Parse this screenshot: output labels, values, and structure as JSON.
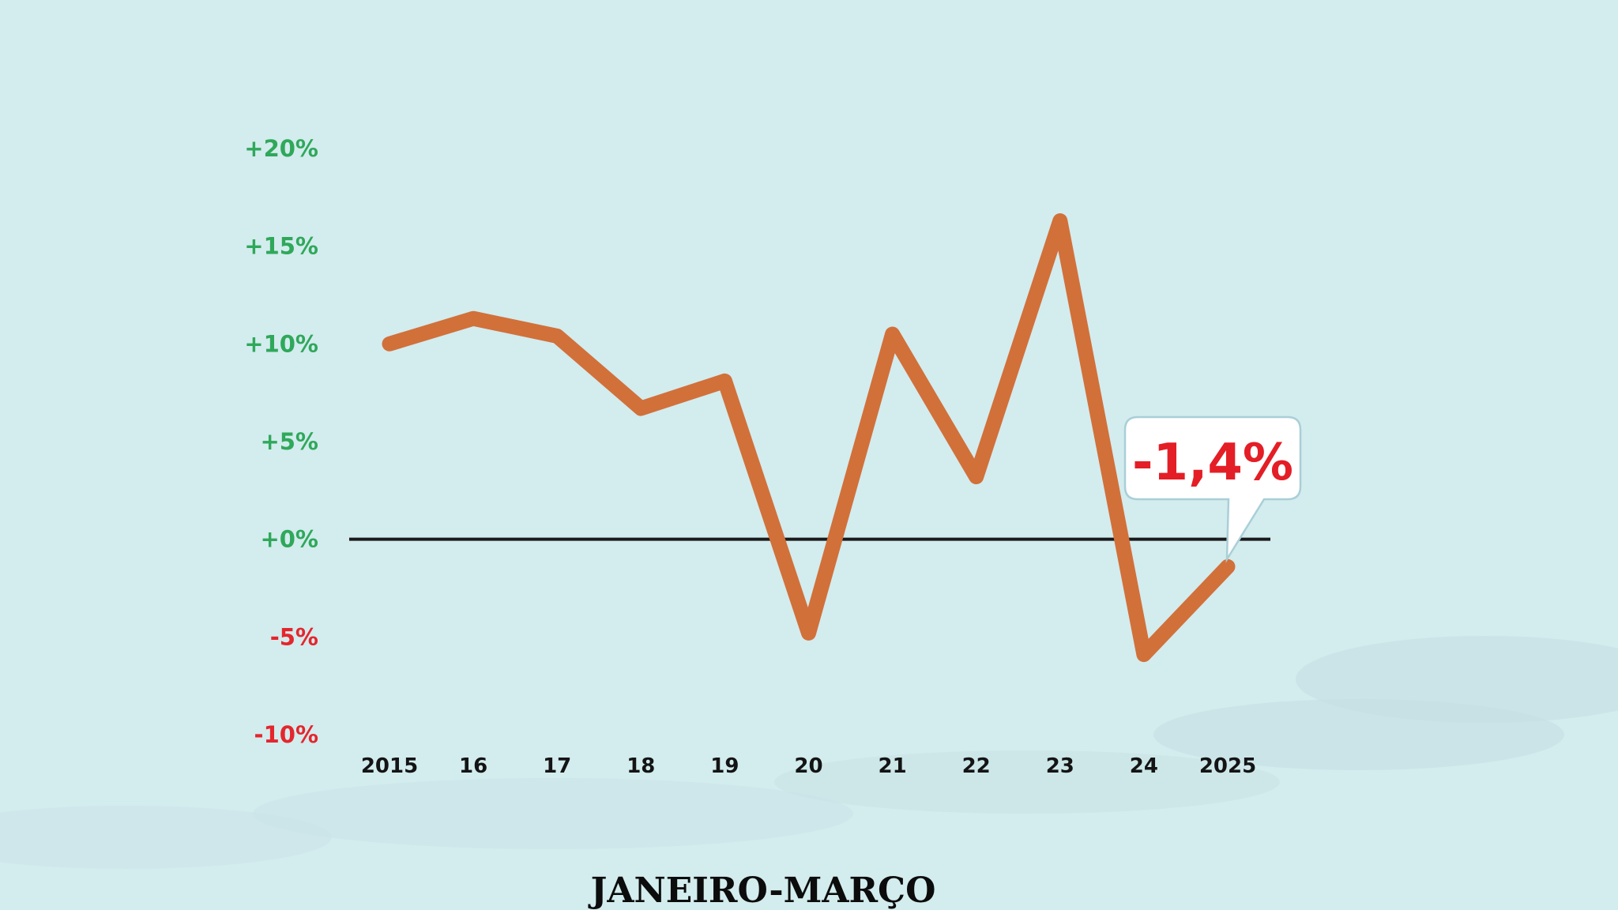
{
  "chart_data": {
    "type": "line",
    "categories": [
      "2015",
      "16",
      "17",
      "18",
      "19",
      "20",
      "21",
      "22",
      "23",
      "24",
      "2025"
    ],
    "values": [
      10.0,
      11.3,
      10.4,
      6.7,
      8.1,
      -4.8,
      10.5,
      3.2,
      16.3,
      -5.9,
      -1.4
    ],
    "y_tick_labels": [
      "+20%",
      "+15%",
      "+10%",
      "+5%",
      "+0%",
      "-5%",
      "-10%"
    ],
    "ylim": [
      -10,
      20
    ],
    "grid": false,
    "zero_line": true,
    "callout": {
      "text": "-1,4%",
      "category": "2025"
    },
    "xlabel": "JANEIRO-MARÇO",
    "colors": {
      "background": "#d3ecee",
      "line": "#d2703a",
      "positive_tick": "#2fa85a",
      "negative_tick": "#e4262d",
      "zero_line": "#1a1a1a",
      "callout_text": "#e41e26"
    }
  }
}
